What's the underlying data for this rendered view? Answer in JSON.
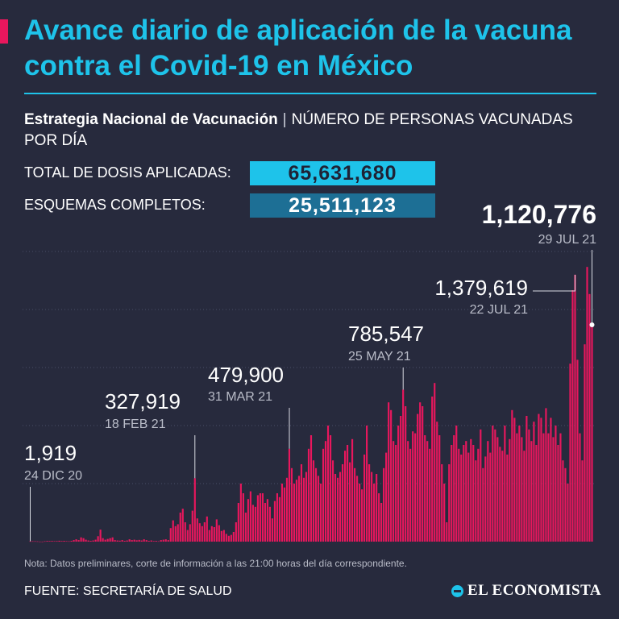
{
  "header": {
    "title": "Avance diario de aplicación de la vacuna contra el Covid-19 en México",
    "subtitle_bold": "Estrategia Nacional de Vacunación",
    "subtitle_sep": "|",
    "subtitle_rest": "NÚMERO DE PERSONAS VACUNADAS POR DÍA"
  },
  "stats": {
    "total_label": "TOTAL DE DOSIS APLICADAS:",
    "total_value": "65,631,680",
    "complete_label": "ESQUEMAS COMPLETOS:",
    "complete_value": "25,511,123"
  },
  "colors": {
    "background": "#272a3d",
    "accent": "#e8175d",
    "title": "#1ec3ea",
    "total_box": "#1ec3ea",
    "complete_box": "#1d6f95",
    "bars": "#e8175d"
  },
  "chart_data": {
    "type": "bar",
    "x_range": [
      "24 DIC 20",
      "29 JUL 21"
    ],
    "ylim": [
      0,
      1500000
    ],
    "grid": true,
    "values": [
      1919,
      2000,
      2000,
      1500,
      500,
      300,
      2000,
      3500,
      3000,
      3500,
      2500,
      3000,
      4500,
      3000,
      4000,
      2500,
      2000,
      4000,
      8000,
      12000,
      8000,
      22000,
      18000,
      10000,
      6000,
      4000,
      6000,
      10000,
      28000,
      62000,
      18000,
      10000,
      14000,
      18000,
      22000,
      8000,
      6000,
      5000,
      8000,
      4000,
      6000,
      12000,
      8000,
      10000,
      7000,
      9000,
      6000,
      12000,
      8000,
      4000,
      6000,
      3000,
      4000,
      2000,
      8000,
      10000,
      12000,
      8000,
      70000,
      110000,
      80000,
      90000,
      150000,
      170000,
      100000,
      60000,
      90000,
      160000,
      327919,
      120000,
      95000,
      80000,
      100000,
      130000,
      60000,
      80000,
      75000,
      115000,
      85000,
      55000,
      60000,
      40000,
      30000,
      35000,
      50000,
      100000,
      200000,
      300000,
      250000,
      150000,
      220000,
      260000,
      190000,
      180000,
      240000,
      250000,
      250000,
      200000,
      220000,
      180000,
      120000,
      210000,
      250000,
      230000,
      300000,
      280000,
      330000,
      479900,
      380000,
      300000,
      320000,
      340000,
      400000,
      330000,
      360000,
      480000,
      550000,
      420000,
      380000,
      340000,
      300000,
      480000,
      520000,
      600000,
      550000,
      420000,
      350000,
      330000,
      360000,
      400000,
      470000,
      500000,
      410000,
      530000,
      380000,
      340000,
      300000,
      270000,
      450000,
      600000,
      400000,
      360000,
      300000,
      350000,
      250000,
      200000,
      380000,
      460000,
      720000,
      680000,
      520000,
      500000,
      600000,
      650000,
      785547,
      700000,
      520000,
      480000,
      570000,
      560000,
      660000,
      720000,
      700000,
      550000,
      520000,
      480000,
      750000,
      820000,
      620000,
      550000,
      400000,
      300000,
      100000,
      400000,
      500000,
      550000,
      600000,
      480000,
      450000,
      500000,
      520000,
      460000,
      530000,
      500000,
      420000,
      480000,
      580000,
      380000,
      440000,
      520000,
      460000,
      600000,
      580000,
      540000,
      490000,
      470000,
      600000,
      450000,
      530000,
      680000,
      640000,
      560000,
      600000,
      540000,
      470000,
      650000,
      580000,
      520000,
      620000,
      500000,
      660000,
      640000,
      560000,
      690000,
      560000,
      640000,
      540000,
      600000,
      500000,
      560000,
      420000,
      380000,
      300000,
      920000,
      1300000,
      1379619,
      940000,
      560000,
      420000,
      1020000,
      1420000,
      1280000,
      1120776
    ]
  },
  "annotations": [
    {
      "value": "1,919",
      "date": "24 DIC 20"
    },
    {
      "value": "327,919",
      "date": "18 FEB 21"
    },
    {
      "value": "479,900",
      "date": "31 MAR 21"
    },
    {
      "value": "785,547",
      "date": "25 MAY 21"
    },
    {
      "value": "1,379,619",
      "date": "22 JUL 21"
    },
    {
      "value": "1,120,776",
      "date": "29 JUL 21"
    }
  ],
  "footer": {
    "note": "Nota: Datos preliminares, corte de información a las 21:00 horas del día correspondiente.",
    "source": "FUENTE: SECRETARÍA DE SALUD",
    "brand": "EL ECONOMISTA"
  }
}
